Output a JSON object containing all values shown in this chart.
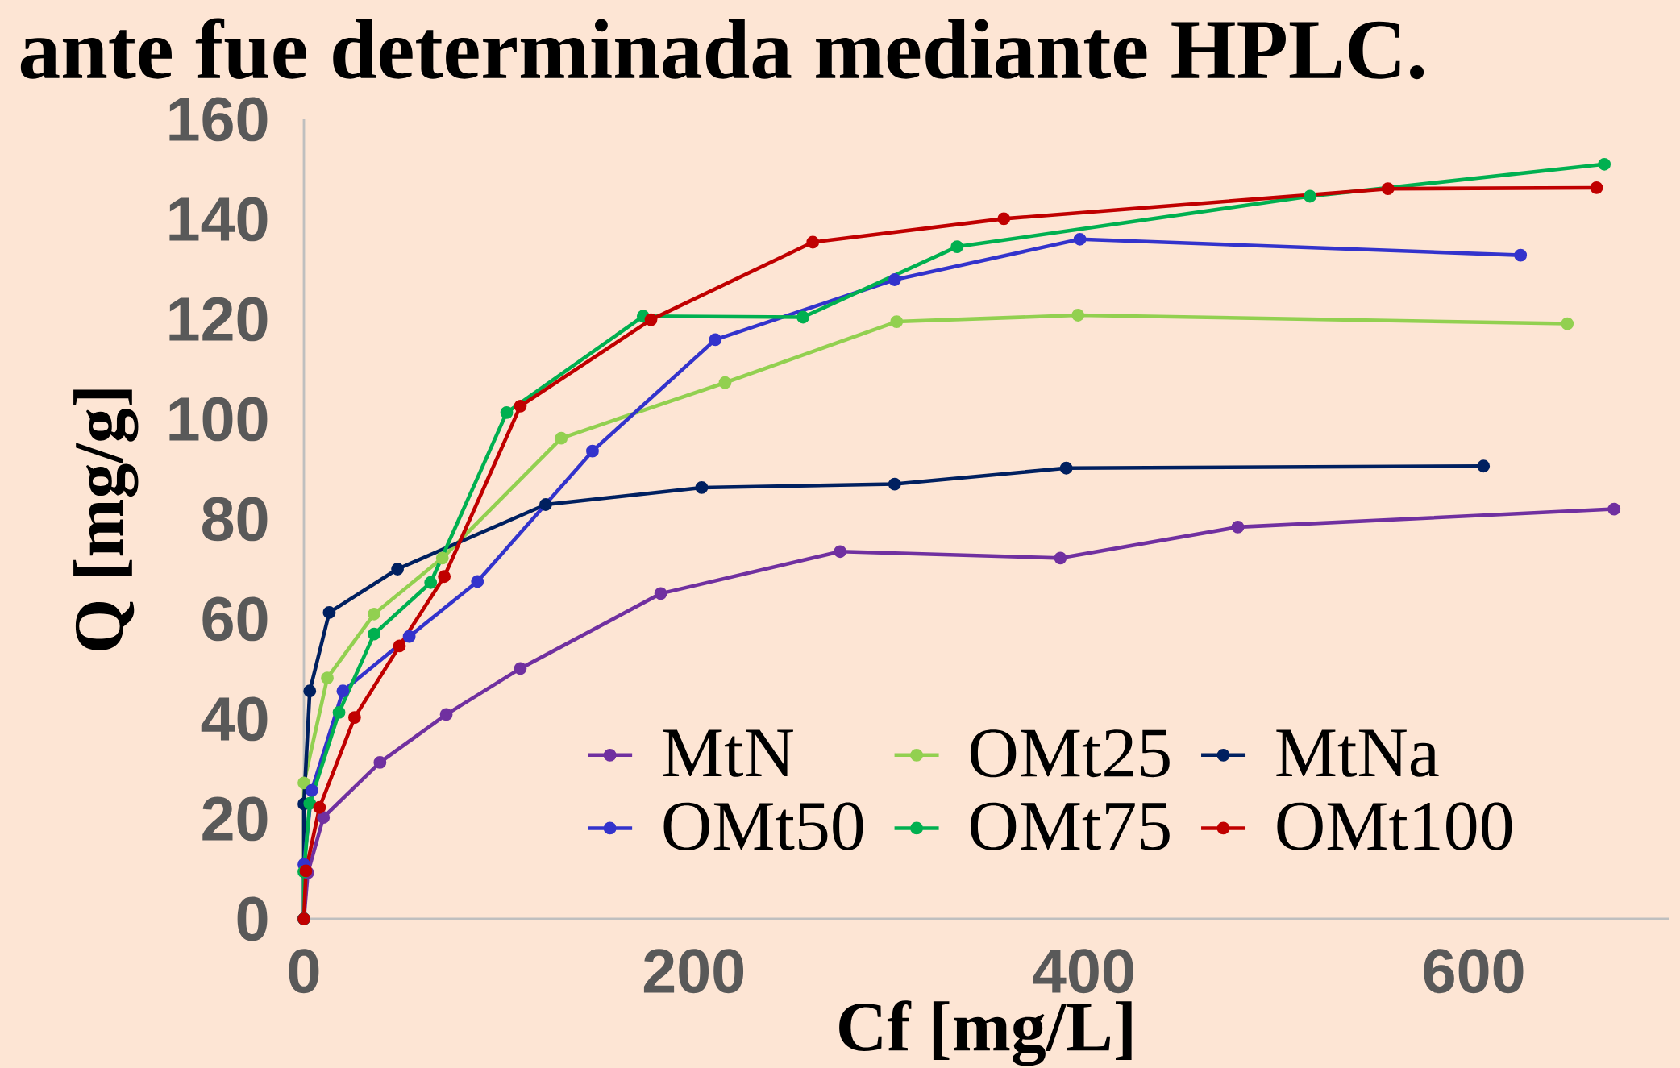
{
  "chart_data": {
    "type": "line",
    "title": "ante fue determinada mediante HPLC.",
    "xlabel": "Cf [mg/L]",
    "ylabel": "Q [mg/g]",
    "xlim": [
      0,
      700
    ],
    "ylim": [
      0,
      160
    ],
    "xticks": [
      0,
      200,
      400,
      600
    ],
    "yticks": [
      0,
      20,
      40,
      60,
      80,
      100,
      120,
      140,
      160
    ],
    "legend": "bottom right",
    "marker": "circle",
    "line_style": "solid",
    "series": [
      {
        "name": "MtN",
        "color": "#7030a0",
        "x": [
          0,
          2,
          10,
          39,
          73,
          111,
          183,
          275,
          388,
          479,
          672
        ],
        "values": [
          0,
          9.2,
          20.3,
          31.3,
          40.9,
          50.1,
          65.1,
          73.5,
          72.2,
          78.4,
          82.0
        ]
      },
      {
        "name": "OMt25",
        "color": "#92d050",
        "x": [
          0,
          0,
          12,
          36,
          71,
          132,
          216,
          304,
          397,
          648
        ],
        "values": [
          0,
          27.2,
          48.2,
          61.0,
          72.2,
          96.2,
          107.3,
          119.5,
          120.8,
          119.1
        ]
      },
      {
        "name": "MtNa",
        "color": "#002060",
        "x": [
          0,
          0,
          3,
          13,
          48,
          124,
          204,
          303,
          391,
          605
        ],
        "values": [
          0,
          23.0,
          45.6,
          61.3,
          70.0,
          82.9,
          86.3,
          87.0,
          90.2,
          90.6
        ]
      },
      {
        "name": "OMt50",
        "color": "#3333cc",
        "x": [
          0,
          0,
          4,
          20,
          54,
          89,
          148,
          211,
          303,
          398,
          624
        ],
        "values": [
          0,
          10.9,
          25.7,
          45.6,
          56.5,
          67.5,
          93.6,
          115.9,
          127.9,
          136.0,
          132.8
        ]
      },
      {
        "name": "OMt75",
        "color": "#00b050",
        "x": [
          0,
          0,
          3,
          18,
          36,
          65,
          104,
          174,
          256,
          335,
          516,
          667
        ],
        "values": [
          0,
          9.4,
          23.1,
          41.3,
          57.0,
          67.3,
          101.3,
          120.6,
          120.4,
          134.5,
          144.6,
          151.0
        ]
      },
      {
        "name": "OMt100",
        "color": "#c00000",
        "x": [
          0,
          1,
          8,
          26,
          49,
          72,
          111,
          178,
          261,
          359,
          556,
          663
        ],
        "values": [
          0,
          9.6,
          22.3,
          40.3,
          54.6,
          68.5,
          102.6,
          119.9,
          135.4,
          140.1,
          146.1,
          146.3
        ]
      }
    ]
  }
}
